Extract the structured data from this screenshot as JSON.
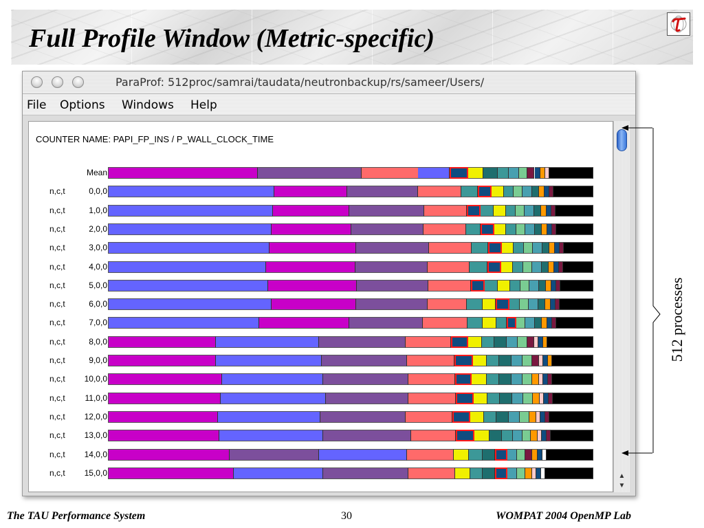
{
  "slide": {
    "title": "Full Profile Window (Metric-specific)",
    "logo_icon": "tau-symbol-icon",
    "annotation": "512 processes",
    "footer_left": "The TAU Performance System",
    "footer_page": "30",
    "footer_right": "WOMPAT 2004 OpenMP Lab"
  },
  "window": {
    "title": "ParaProf: 512proc/samrai/taudata/neutronbackup/rs/sameer/Users/",
    "menu": [
      "File",
      "Options",
      "Windows",
      "Help"
    ],
    "counter_name": "COUNTER NAME: PAPI_FP_INS / P_WALL_CLOCK_TIME"
  },
  "colors": {
    "P": "#c800c8",
    "L": "#6464ff",
    "M": "#7c4f9c",
    "S": "#ff6a6a",
    "T": "#3c9898",
    "Y": "#f0f000",
    "G": "#1e6e6e",
    "C": "#48a0b0",
    "N": "#7acc92",
    "O": "#ff9900",
    "V": "#7a1840",
    "K": "#ffcccc",
    "B": "#104c80",
    "W": "#ffffff",
    "E": "#000000",
    "H": "#104c80",
    "highlight_border": "#ff1a1a"
  },
  "rows": [
    {
      "prefix": "",
      "label": "Mean",
      "segments": [
        [
          "P",
          211
        ],
        [
          "M",
          147
        ],
        [
          "S",
          80
        ],
        [
          "L",
          44
        ],
        [
          "H",
          26
        ],
        [
          "Y",
          22
        ],
        [
          "G",
          20
        ],
        [
          "T",
          16
        ],
        [
          "C",
          14
        ],
        [
          "N",
          12
        ],
        [
          "V",
          10
        ],
        [
          "B",
          8
        ],
        [
          "O",
          7
        ],
        [
          "K",
          6
        ],
        [
          "E",
          62
        ]
      ]
    },
    {
      "prefix": "n,c,t",
      "label": "0,0,0",
      "segments": [
        [
          "L",
          242
        ],
        [
          "P",
          106
        ],
        [
          "M",
          103
        ],
        [
          "S",
          63
        ],
        [
          "T",
          24
        ],
        [
          "H",
          20
        ],
        [
          "Y",
          18
        ],
        [
          "T",
          14
        ],
        [
          "N",
          13
        ],
        [
          "C",
          14
        ],
        [
          "G",
          10
        ],
        [
          "O",
          8
        ],
        [
          "B",
          7
        ],
        [
          "V",
          6
        ],
        [
          "E",
          58
        ]
      ]
    },
    {
      "prefix": "n,c,t",
      "label": "1,0,0",
      "segments": [
        [
          "L",
          240
        ],
        [
          "P",
          111
        ],
        [
          "M",
          109
        ],
        [
          "S",
          62
        ],
        [
          "H",
          20
        ],
        [
          "T",
          19
        ],
        [
          "Y",
          18
        ],
        [
          "T",
          14
        ],
        [
          "N",
          13
        ],
        [
          "C",
          14
        ],
        [
          "G",
          10
        ],
        [
          "O",
          8
        ],
        [
          "B",
          7
        ],
        [
          "V",
          6
        ],
        [
          "E",
          55
        ]
      ]
    },
    {
      "prefix": "n,c,t",
      "label": "2,0,0",
      "segments": [
        [
          "L",
          238
        ],
        [
          "P",
          116
        ],
        [
          "M",
          105
        ],
        [
          "S",
          62
        ],
        [
          "T",
          21
        ],
        [
          "H",
          20
        ],
        [
          "Y",
          17
        ],
        [
          "T",
          15
        ],
        [
          "N",
          13
        ],
        [
          "C",
          14
        ],
        [
          "G",
          10
        ],
        [
          "O",
          8
        ],
        [
          "B",
          7
        ],
        [
          "V",
          6
        ],
        [
          "E",
          54
        ]
      ]
    },
    {
      "prefix": "n,c,t",
      "label": "3,0,0",
      "segments": [
        [
          "L",
          235
        ],
        [
          "P",
          126
        ],
        [
          "M",
          106
        ],
        [
          "S",
          62
        ],
        [
          "T",
          24
        ],
        [
          "H",
          20
        ],
        [
          "Y",
          17
        ],
        [
          "T",
          15
        ],
        [
          "N",
          13
        ],
        [
          "C",
          14
        ],
        [
          "G",
          10
        ],
        [
          "O",
          8
        ],
        [
          "B",
          7
        ],
        [
          "V",
          6
        ],
        [
          "E",
          43
        ]
      ]
    },
    {
      "prefix": "n,c,t",
      "label": "4,0,0",
      "segments": [
        [
          "L",
          230
        ],
        [
          "P",
          130
        ],
        [
          "M",
          105
        ],
        [
          "S",
          61
        ],
        [
          "T",
          26
        ],
        [
          "H",
          20
        ],
        [
          "Y",
          17
        ],
        [
          "T",
          15
        ],
        [
          "N",
          13
        ],
        [
          "C",
          14
        ],
        [
          "G",
          10
        ],
        [
          "O",
          8
        ],
        [
          "B",
          7
        ],
        [
          "V",
          6
        ],
        [
          "E",
          44
        ]
      ]
    },
    {
      "prefix": "n,c,t",
      "label": "5,0,0",
      "segments": [
        [
          "L",
          233
        ],
        [
          "P",
          129
        ],
        [
          "M",
          104
        ],
        [
          "S",
          62
        ],
        [
          "H",
          20
        ],
        [
          "T",
          19
        ],
        [
          "Y",
          18
        ],
        [
          "T",
          15
        ],
        [
          "N",
          13
        ],
        [
          "C",
          14
        ],
        [
          "G",
          10
        ],
        [
          "O",
          8
        ],
        [
          "B",
          7
        ],
        [
          "V",
          6
        ],
        [
          "E",
          48
        ]
      ]
    },
    {
      "prefix": "n,c,t",
      "label": "6,0,0",
      "segments": [
        [
          "L",
          238
        ],
        [
          "P",
          123
        ],
        [
          "M",
          104
        ],
        [
          "S",
          57
        ],
        [
          "T",
          23
        ],
        [
          "Y",
          19
        ],
        [
          "H",
          20
        ],
        [
          "T",
          15
        ],
        [
          "N",
          13
        ],
        [
          "C",
          14
        ],
        [
          "G",
          10
        ],
        [
          "O",
          8
        ],
        [
          "B",
          7
        ],
        [
          "V",
          6
        ],
        [
          "E",
          49
        ]
      ]
    },
    {
      "prefix": "n,c,t",
      "label": "7,0,0",
      "segments": [
        [
          "L",
          220
        ],
        [
          "P",
          131
        ],
        [
          "M",
          107
        ],
        [
          "S",
          65
        ],
        [
          "T",
          22
        ],
        [
          "Y",
          20
        ],
        [
          "T",
          15
        ],
        [
          "H",
          14
        ],
        [
          "N",
          13
        ],
        [
          "C",
          14
        ],
        [
          "G",
          10
        ],
        [
          "O",
          8
        ],
        [
          "B",
          7
        ],
        [
          "V",
          6
        ],
        [
          "E",
          54
        ]
      ]
    },
    {
      "prefix": "n,c,t",
      "label": "8,0,0",
      "segments": [
        [
          "P",
          157
        ],
        [
          "L",
          150
        ],
        [
          "M",
          126
        ],
        [
          "S",
          66
        ],
        [
          "H",
          25
        ],
        [
          "Y",
          20
        ],
        [
          "T",
          18
        ],
        [
          "G",
          18
        ],
        [
          "C",
          16
        ],
        [
          "N",
          14
        ],
        [
          "V",
          10
        ],
        [
          "K",
          6
        ],
        [
          "B",
          7
        ],
        [
          "O",
          6
        ],
        [
          "E",
          67
        ]
      ]
    },
    {
      "prefix": "n,c,t",
      "label": "9,0,0",
      "segments": [
        [
          "P",
          157
        ],
        [
          "L",
          154
        ],
        [
          "M",
          124
        ],
        [
          "S",
          69
        ],
        [
          "H",
          27
        ],
        [
          "Y",
          20
        ],
        [
          "T",
          18
        ],
        [
          "G",
          18
        ],
        [
          "C",
          16
        ],
        [
          "N",
          14
        ],
        [
          "V",
          10
        ],
        [
          "K",
          6
        ],
        [
          "B",
          7
        ],
        [
          "O",
          6
        ],
        [
          "E",
          60
        ]
      ]
    },
    {
      "prefix": "n,c,t",
      "label": "10,0,0",
      "segments": [
        [
          "P",
          166
        ],
        [
          "L",
          147
        ],
        [
          "M",
          124
        ],
        [
          "S",
          68
        ],
        [
          "H",
          24
        ],
        [
          "Y",
          22
        ],
        [
          "T",
          18
        ],
        [
          "G",
          18
        ],
        [
          "C",
          16
        ],
        [
          "N",
          14
        ],
        [
          "O",
          10
        ],
        [
          "K",
          6
        ],
        [
          "B",
          7
        ],
        [
          "V",
          6
        ],
        [
          "E",
          60
        ]
      ]
    },
    {
      "prefix": "n,c,t",
      "label": "11,0,0",
      "segments": [
        [
          "P",
          164
        ],
        [
          "L",
          153
        ],
        [
          "M",
          120
        ],
        [
          "S",
          69
        ],
        [
          "H",
          26
        ],
        [
          "Y",
          20
        ],
        [
          "T",
          18
        ],
        [
          "G",
          18
        ],
        [
          "C",
          16
        ],
        [
          "N",
          14
        ],
        [
          "O",
          10
        ],
        [
          "K",
          6
        ],
        [
          "B",
          7
        ],
        [
          "V",
          6
        ],
        [
          "E",
          59
        ]
      ]
    },
    {
      "prefix": "n,c,t",
      "label": "12,0,0",
      "segments": [
        [
          "P",
          160
        ],
        [
          "L",
          149
        ],
        [
          "M",
          124
        ],
        [
          "S",
          68
        ],
        [
          "H",
          26
        ],
        [
          "Y",
          20
        ],
        [
          "T",
          18
        ],
        [
          "G",
          18
        ],
        [
          "C",
          16
        ],
        [
          "N",
          14
        ],
        [
          "O",
          10
        ],
        [
          "K",
          6
        ],
        [
          "B",
          7
        ],
        [
          "V",
          6
        ],
        [
          "E",
          64
        ]
      ]
    },
    {
      "prefix": "n,c,t",
      "label": "13,0,0",
      "segments": [
        [
          "P",
          162
        ],
        [
          "L",
          151
        ],
        [
          "M",
          128
        ],
        [
          "S",
          65
        ],
        [
          "H",
          27
        ],
        [
          "Y",
          22
        ],
        [
          "G",
          18
        ],
        [
          "T",
          16
        ],
        [
          "C",
          14
        ],
        [
          "N",
          12
        ],
        [
          "O",
          10
        ],
        [
          "K",
          6
        ],
        [
          "B",
          7
        ],
        [
          "V",
          6
        ],
        [
          "E",
          62
        ]
      ]
    },
    {
      "prefix": "n,c,t",
      "label": "14,0,0",
      "segments": [
        [
          "P",
          177
        ],
        [
          "M",
          130
        ],
        [
          "L",
          128
        ],
        [
          "S",
          68
        ],
        [
          "Y",
          22
        ],
        [
          "T",
          20
        ],
        [
          "G",
          18
        ],
        [
          "H",
          18
        ],
        [
          "C",
          14
        ],
        [
          "N",
          12
        ],
        [
          "V",
          10
        ],
        [
          "O",
          8
        ],
        [
          "B",
          7
        ],
        [
          "W",
          6
        ],
        [
          "E",
          68
        ]
      ]
    },
    {
      "prefix": "n,c,t",
      "label": "15,0,0",
      "segments": [
        [
          "P",
          183
        ],
        [
          "L",
          130
        ],
        [
          "M",
          124
        ],
        [
          "S",
          68
        ],
        [
          "Y",
          22
        ],
        [
          "T",
          18
        ],
        [
          "G",
          18
        ],
        [
          "H",
          18
        ],
        [
          "C",
          14
        ],
        [
          "N",
          12
        ],
        [
          "O",
          10
        ],
        [
          "K",
          6
        ],
        [
          "B",
          7
        ],
        [
          "W",
          6
        ],
        [
          "E",
          70
        ]
      ]
    }
  ]
}
